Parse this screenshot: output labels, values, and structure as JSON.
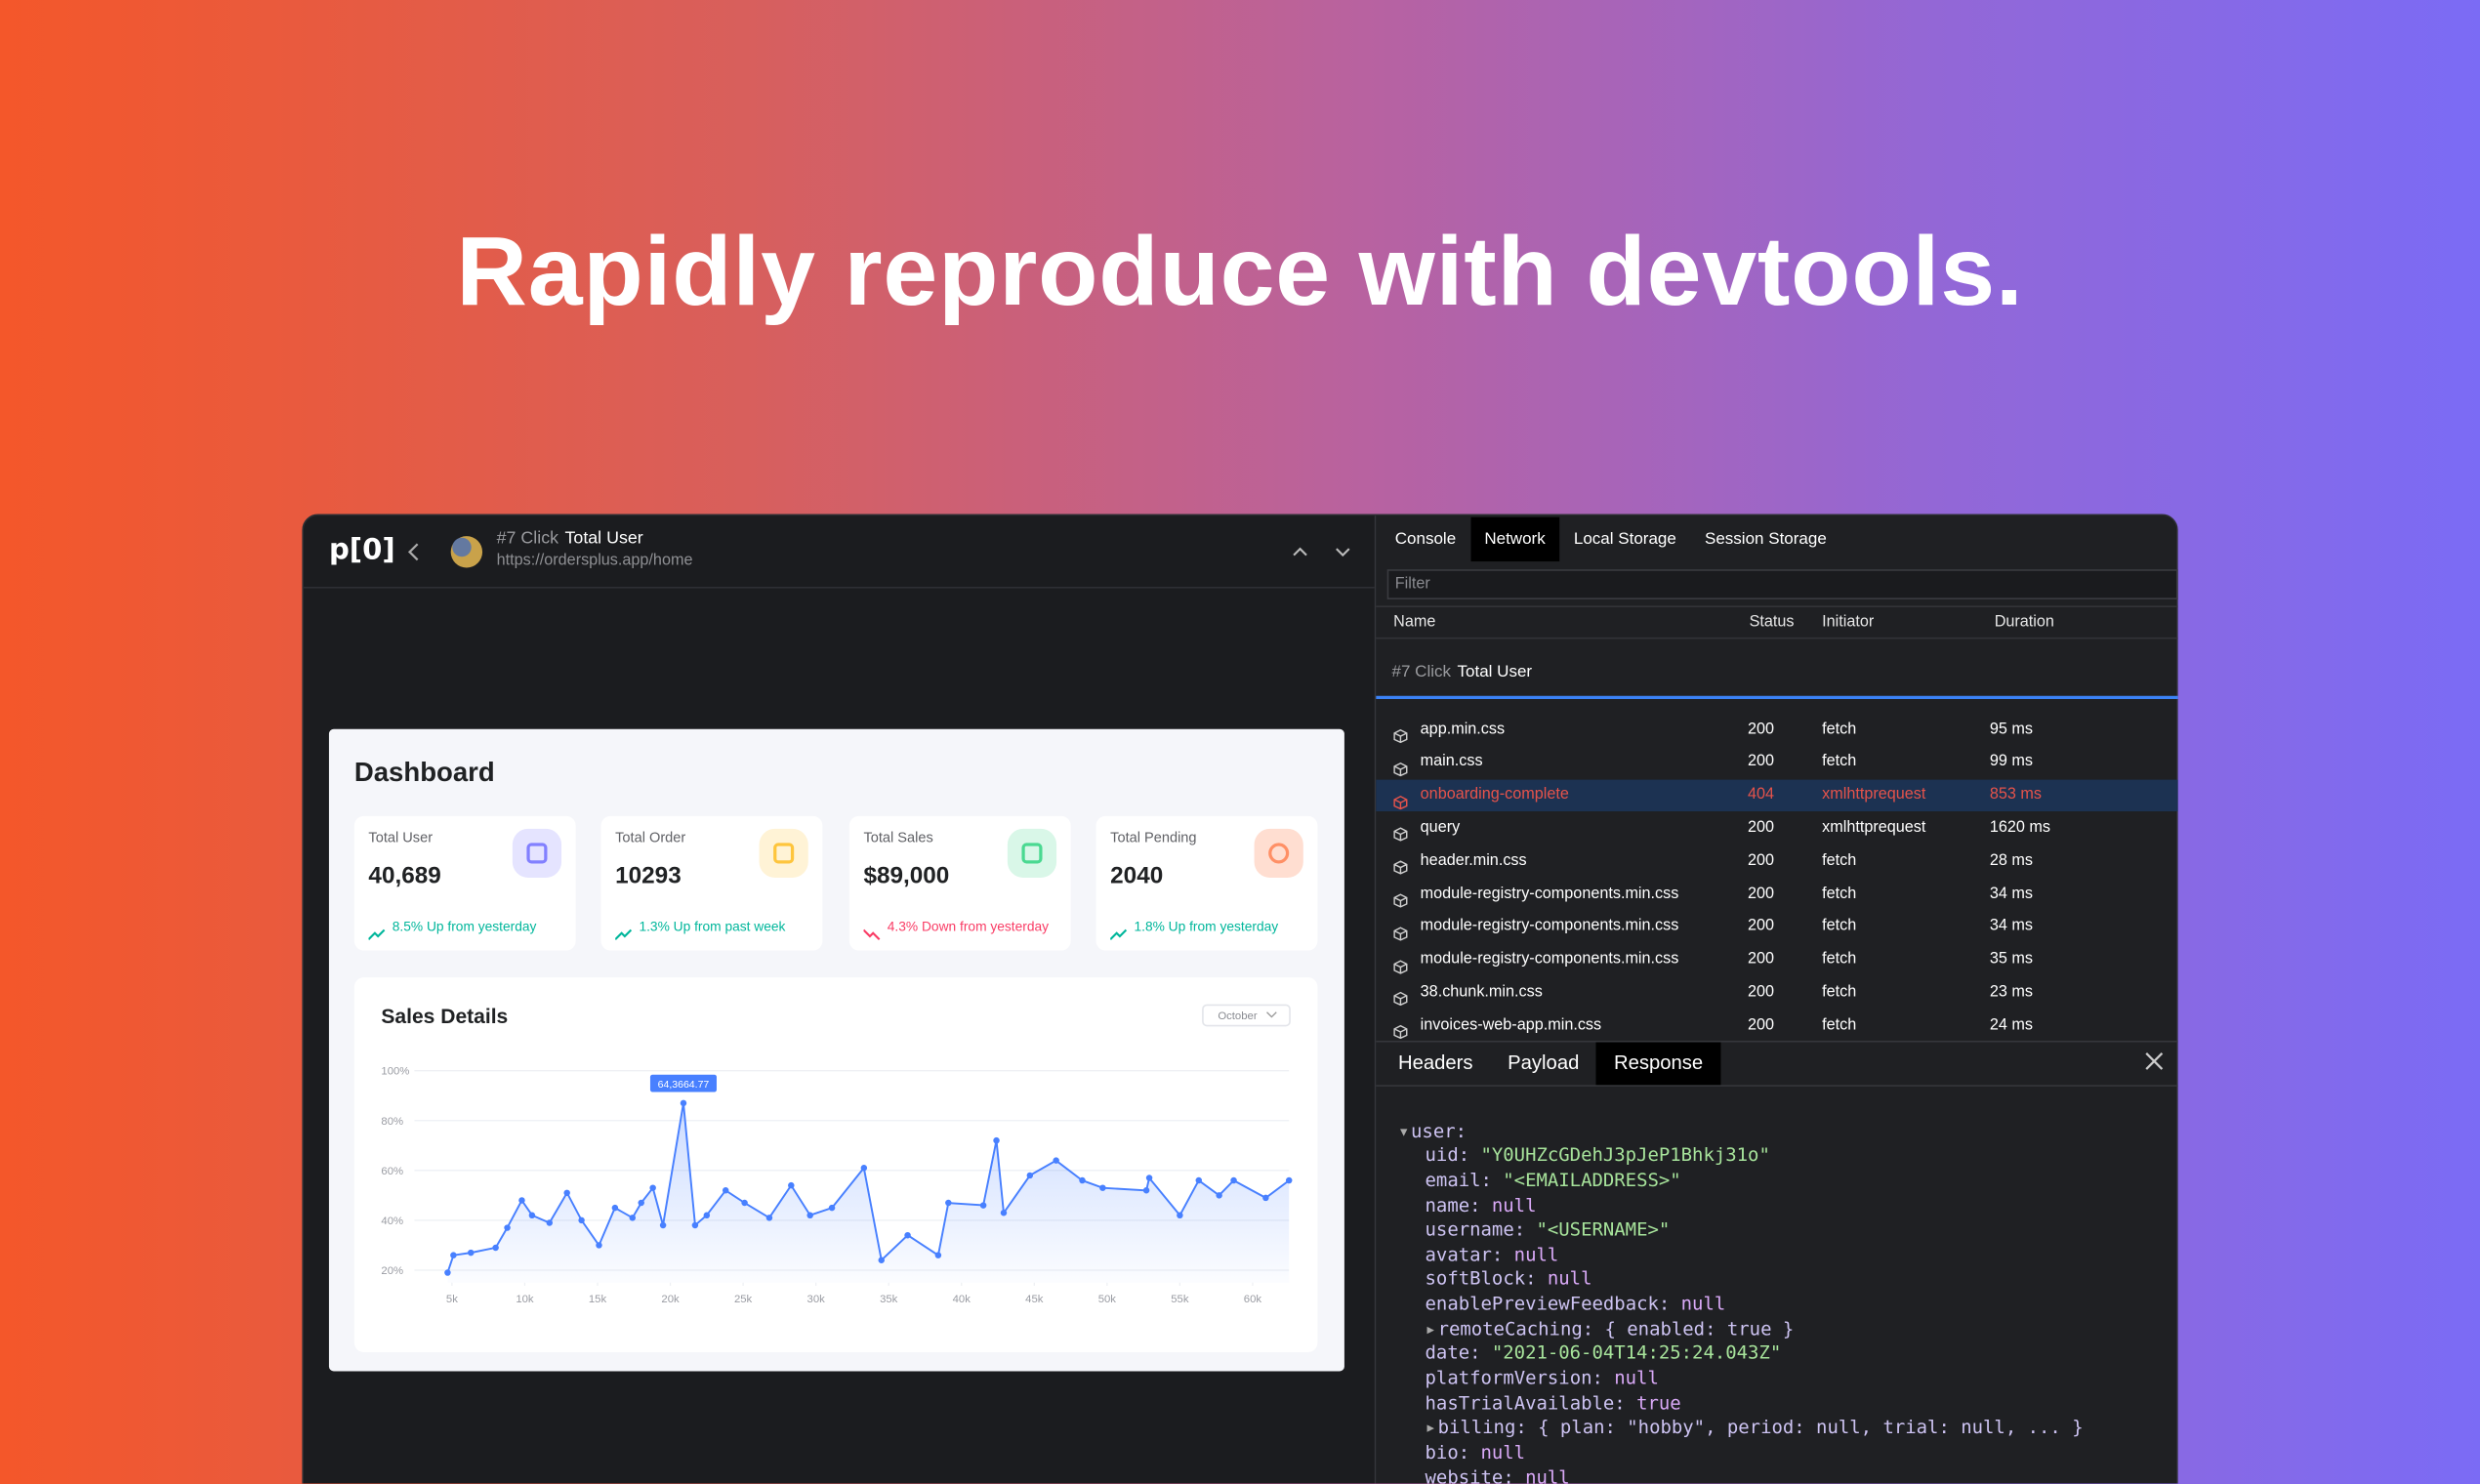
{
  "headline": "Rapidly reproduce with devtools.",
  "app": {
    "logo": "p[0]",
    "step": "#7 Click",
    "target": "Total User",
    "url": "https://ordersplus.app/home"
  },
  "dashboard": {
    "title": "Dashboard",
    "cards": [
      {
        "label": "Total User",
        "value": "40,689",
        "trend": "8.5% Up from yesterday",
        "direction": "up"
      },
      {
        "label": "Total Order",
        "value": "10293",
        "trend": "1.3% Up from past week",
        "direction": "up"
      },
      {
        "label": "Total Sales",
        "value": "$89,000",
        "trend": "4.3% Down from yesterday",
        "direction": "down"
      },
      {
        "label": "Total Pending",
        "value": "2040",
        "trend": "1.8% Up from yesterday",
        "direction": "up"
      }
    ]
  },
  "chart_data": {
    "type": "line",
    "title": "Sales Details",
    "dropdown": "October",
    "annotation": "64,3664.77",
    "x": [
      4700,
      5100,
      6300,
      8000,
      8800,
      9800,
      10500,
      11700,
      12900,
      13900,
      15100,
      16200,
      17400,
      18000,
      18800,
      19500,
      20900,
      21700,
      22500,
      23800,
      25100,
      26800,
      28300,
      29600,
      31100,
      33300,
      34500,
      36300,
      38400,
      39100,
      41500,
      42400,
      42900,
      44700,
      46500,
      48300,
      49700,
      52700,
      52900,
      55000,
      56300,
      57700,
      58700,
      60900,
      62500
    ],
    "series": [
      {
        "color": "#4880ff",
        "values": [
          19,
          26,
          27,
          29,
          37,
          48,
          42,
          39,
          51,
          40,
          30,
          45,
          41,
          47,
          53,
          38,
          87,
          38,
          42,
          52,
          47,
          41,
          54,
          42,
          45,
          61,
          24,
          34,
          26,
          47,
          46,
          72,
          43,
          58,
          64,
          56,
          53,
          52,
          57,
          42,
          56,
          50,
          56,
          49,
          56
        ]
      }
    ],
    "xlim": [
      4700,
      62500
    ],
    "ylim": [
      15,
      100
    ],
    "xticks": [
      {
        "value": 5000,
        "label": "5k"
      },
      {
        "value": 10000,
        "label": "10k"
      },
      {
        "value": 15000,
        "label": "15k"
      },
      {
        "value": 20000,
        "label": "20k"
      },
      {
        "value": 25000,
        "label": "25k"
      },
      {
        "value": 30000,
        "label": "30k"
      },
      {
        "value": 35000,
        "label": "35k"
      },
      {
        "value": 40000,
        "label": "40k"
      },
      {
        "value": 45000,
        "label": "45k"
      },
      {
        "value": 50000,
        "label": "50k"
      },
      {
        "value": 55000,
        "label": "55k"
      },
      {
        "value": 60000,
        "label": "60k"
      }
    ],
    "yticks": [
      {
        "value": 20,
        "label": "20%"
      },
      {
        "value": 40,
        "label": "40%"
      },
      {
        "value": 60,
        "label": "60%"
      },
      {
        "value": 80,
        "label": "80%"
      },
      {
        "value": 100,
        "label": "100%"
      }
    ],
    "grid": true
  },
  "devtools": {
    "tabs": [
      "Console",
      "Network",
      "Local Storage",
      "Session Storage"
    ],
    "active_tab": 1,
    "filter_placeholder": "Filter",
    "columns": [
      "Name",
      "Status",
      "Initiator",
      "Duration"
    ],
    "group_step": "#7 Click",
    "group_target": "Total User",
    "selected_request": 2,
    "requests": [
      [
        "app.min.css",
        "200",
        "fetch",
        "95 ms"
      ],
      [
        "main.css",
        "200",
        "fetch",
        "99 ms"
      ],
      [
        "onboarding-complete",
        "404",
        "xmlhttprequest",
        "853 ms"
      ],
      [
        "query",
        "200",
        "xmlhttprequest",
        "1620 ms"
      ],
      [
        "header.min.css",
        "200",
        "fetch",
        "28 ms"
      ],
      [
        "module-registry-components.min.css",
        "200",
        "fetch",
        "34 ms"
      ],
      [
        "module-registry-components.min.css",
        "200",
        "fetch",
        "34 ms"
      ],
      [
        "module-registry-components.min.css",
        "200",
        "fetch",
        "35 ms"
      ],
      [
        "38.chunk.min.css",
        "200",
        "fetch",
        "23 ms"
      ],
      [
        "invoices-web-app.min.css",
        "200",
        "fetch",
        "24 ms"
      ]
    ],
    "detail_tabs": [
      "Headers",
      "Payload",
      "Response"
    ],
    "active_detail_tab": 2,
    "response": {
      "root": "user:",
      "fields": [
        {
          "key": "uid:",
          "value": "\"Y0UHZcGDehJ3pJeP1Bhkj31o\""
        },
        {
          "key": "email:",
          "value": "\"<EMAILADDRESS>\""
        },
        {
          "key": "name:",
          "value": "null"
        },
        {
          "key": "username:",
          "value": "\"<USERNAME>\""
        },
        {
          "key": "avatar:",
          "value": "null"
        },
        {
          "key": "softBlock:",
          "value": "null"
        },
        {
          "key": "enablePreviewFeedback:",
          "value": "null"
        },
        {
          "key": "remoteCaching:",
          "value": "{ enabled: true }",
          "expandable": true
        },
        {
          "key": "date:",
          "value": "\"2021-06-04T14:25:24.043Z\""
        },
        {
          "key": "platformVersion:",
          "value": "null"
        },
        {
          "key": "hasTrialAvailable:",
          "value": "true"
        },
        {
          "key": "billing:",
          "value": "{ plan: \"hobby\", period: null, trial: null, ... }",
          "expandable": true
        },
        {
          "key": "bio:",
          "value": "null"
        },
        {
          "key": "website:",
          "value": "null"
        }
      ]
    }
  }
}
